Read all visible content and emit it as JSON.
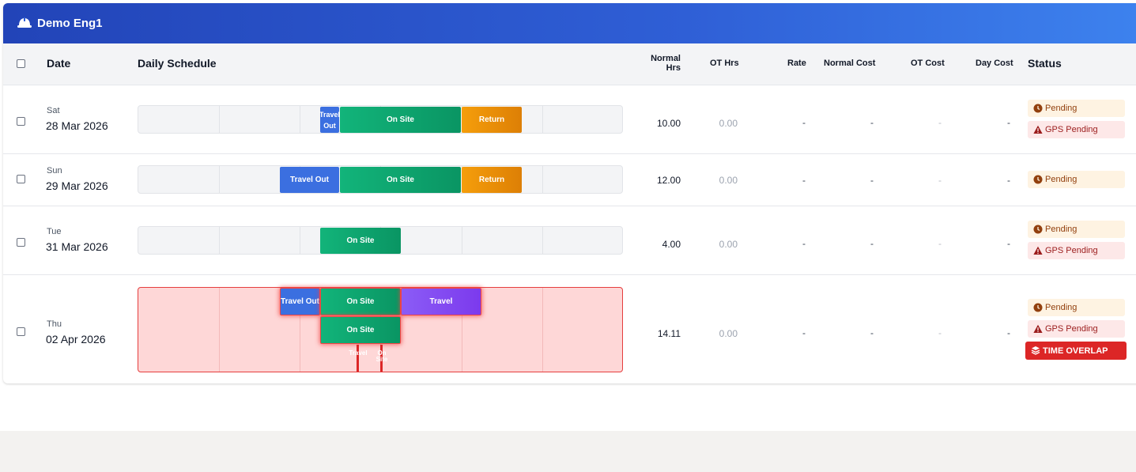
{
  "header": {
    "title": "Demo Eng1",
    "icon": "hard-hat-icon"
  },
  "columns": {
    "date": "Date",
    "daily_schedule": "Daily Schedule",
    "normal_hrs_line1": "Normal",
    "normal_hrs_line2": "Hrs",
    "ot_hrs": "OT Hrs",
    "rate": "Rate",
    "normal_cost": "Normal Cost",
    "ot_cost": "OT Cost",
    "day_cost": "Day Cost",
    "status": "Status"
  },
  "rows": [
    {
      "day": "Sat",
      "date": "28 Mar 2026",
      "normal_hrs": "10.00",
      "ot_hrs": "0.00",
      "rate": "-",
      "normal_cost": "-",
      "ot_cost": "-",
      "day_cost": "-",
      "segments": [
        {
          "label": "Travel Out",
          "type": "travel-out"
        },
        {
          "label": "On Site",
          "type": "on-site"
        },
        {
          "label": "Return",
          "type": "return"
        }
      ],
      "statuses": [
        "Pending",
        "GPS Pending"
      ]
    },
    {
      "day": "Sun",
      "date": "29 Mar 2026",
      "normal_hrs": "12.00",
      "ot_hrs": "0.00",
      "rate": "-",
      "normal_cost": "-",
      "ot_cost": "-",
      "day_cost": "-",
      "segments": [
        {
          "label": "Travel Out",
          "type": "travel-out"
        },
        {
          "label": "On Site",
          "type": "on-site"
        },
        {
          "label": "Return",
          "type": "return"
        }
      ],
      "statuses": [
        "Pending"
      ]
    },
    {
      "day": "Tue",
      "date": "31 Mar 2026",
      "normal_hrs": "4.00",
      "ot_hrs": "0.00",
      "rate": "-",
      "normal_cost": "-",
      "ot_cost": "-",
      "day_cost": "-",
      "segments": [
        {
          "label": "On Site",
          "type": "on-site"
        }
      ],
      "statuses": [
        "Pending",
        "GPS Pending"
      ]
    },
    {
      "day": "Thu",
      "date": "02 Apr 2026",
      "normal_hrs": "14.11",
      "ot_hrs": "0.00",
      "rate": "-",
      "normal_cost": "-",
      "ot_cost": "-",
      "day_cost": "-",
      "segments": [
        {
          "label": "Travel Out",
          "type": "travel-out"
        },
        {
          "label": "On Site",
          "type": "on-site"
        },
        {
          "label": "Travel",
          "type": "travel"
        },
        {
          "label": "On Site",
          "type": "on-site"
        }
      ],
      "mini_segments": [
        {
          "label": "Travel"
        },
        {
          "label": "On Site"
        }
      ],
      "statuses": [
        "Pending",
        "GPS Pending"
      ],
      "alert": "TIME OVERLAP"
    }
  ]
}
